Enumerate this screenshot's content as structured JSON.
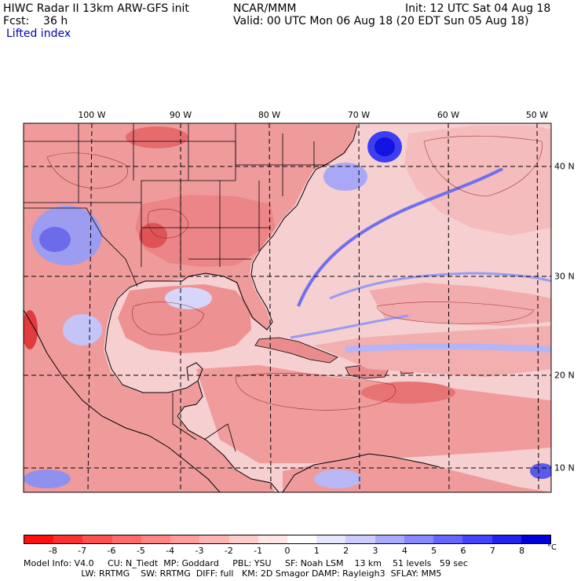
{
  "header": {
    "title": "HIWC Radar II 13km ARW-GFS init",
    "forecast_label": "Fcst:    36 h",
    "field_name": "Lifted index",
    "center": "NCAR/MMM",
    "init": "Init: 12 UTC Sat 04 Aug 18",
    "valid": "Valid: 00 UTC Mon 06 Aug 18 (20 EDT Sun 05 Aug 18)"
  },
  "map": {
    "lon_labels": [
      "100 W",
      "90 W",
      "80 W",
      "70 W",
      "60 W",
      "50 W"
    ],
    "lat_labels": [
      "40 N",
      "30 N",
      "20 N",
      "10 N"
    ],
    "colors": {
      "water_base": "#f6cfd0",
      "land_base": "#ef9b9c",
      "coastline": "#000000",
      "grid": "#000000"
    }
  },
  "colorbar": {
    "ticks": [
      "-8",
      "-7",
      "-6",
      "-5",
      "-4",
      "-3",
      "-2",
      "-1",
      "0",
      "1",
      "2",
      "3",
      "4",
      "5",
      "6",
      "7",
      "8"
    ],
    "unit": "°C",
    "colors": [
      "#ff1010",
      "#ff3030",
      "#ff5050",
      "#ff6a6a",
      "#ff8484",
      "#ff9c9c",
      "#ffb4b4",
      "#ffcccc",
      "#ffe6e6",
      "#ffffff",
      "#e6e6ff",
      "#ccccff",
      "#aaaaff",
      "#8888ff",
      "#6666ff",
      "#4444ff",
      "#2222ee",
      "#0000dd"
    ]
  },
  "footer": {
    "line1": "Model Info: V4.0     CU: N_Tiedt  MP: Goddard     PBL: YSU     SF: Noah LSM    13 km    51 levels   59 sec",
    "line2": "                     LW: RRTMG    SW: RRTMG  DIFF: full   KM: 2D Smagor DAMP: Rayleigh3  SFLAY: MM5"
  }
}
